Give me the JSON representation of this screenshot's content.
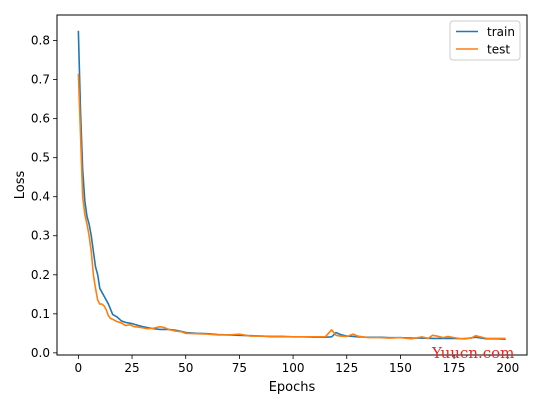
{
  "chart_data": {
    "type": "line",
    "xlabel": "Epochs",
    "ylabel": "Loss",
    "xlim": [
      -9.95,
      208.95
    ],
    "ylim": [
      -0.0055,
      0.8655
    ],
    "x_ticks": [
      0,
      25,
      50,
      75,
      100,
      125,
      150,
      175,
      200
    ],
    "y_ticks": [
      0.0,
      0.1,
      0.2,
      0.3,
      0.4,
      0.5,
      0.6,
      0.7,
      0.8
    ],
    "y_tick_labels": [
      "0.0",
      "0.1",
      "0.2",
      "0.3",
      "0.4",
      "0.5",
      "0.6",
      "0.7",
      "0.8"
    ],
    "grid": false,
    "legend_position": "top-right",
    "series": [
      {
        "name": "train",
        "color": "#1f77b4",
        "x": [
          0,
          1,
          2,
          3,
          4,
          5,
          6,
          7,
          8,
          9,
          10,
          12,
          14,
          16,
          18,
          20,
          22,
          25,
          28,
          30,
          32,
          35,
          38,
          40,
          42,
          45,
          48,
          50,
          55,
          60,
          65,
          70,
          75,
          80,
          85,
          90,
          95,
          100,
          105,
          110,
          115,
          118,
          120,
          122,
          125,
          128,
          130,
          135,
          140,
          145,
          150,
          155,
          160,
          165,
          170,
          175,
          180,
          185,
          190,
          195,
          199
        ],
        "values": [
          0.825,
          0.62,
          0.47,
          0.39,
          0.35,
          0.33,
          0.3,
          0.26,
          0.22,
          0.2,
          0.165,
          0.145,
          0.125,
          0.098,
          0.092,
          0.082,
          0.078,
          0.075,
          0.07,
          0.067,
          0.065,
          0.062,
          0.06,
          0.06,
          0.06,
          0.058,
          0.055,
          0.052,
          0.05,
          0.049,
          0.047,
          0.046,
          0.045,
          0.044,
          0.043,
          0.042,
          0.042,
          0.041,
          0.041,
          0.04,
          0.04,
          0.041,
          0.052,
          0.047,
          0.043,
          0.042,
          0.041,
          0.04,
          0.04,
          0.039,
          0.039,
          0.038,
          0.038,
          0.037,
          0.037,
          0.037,
          0.036,
          0.04,
          0.036,
          0.036,
          0.035
        ]
      },
      {
        "name": "test",
        "color": "#ff7f0e",
        "x": [
          0,
          1,
          2,
          3,
          4,
          5,
          6,
          7,
          8,
          9,
          10,
          11,
          12,
          13,
          14,
          15,
          16,
          18,
          20,
          22,
          24,
          26,
          28,
          30,
          32,
          35,
          38,
          40,
          42,
          45,
          48,
          50,
          55,
          60,
          65,
          70,
          75,
          80,
          85,
          90,
          95,
          100,
          105,
          110,
          115,
          118,
          120,
          122,
          125,
          128,
          130,
          135,
          140,
          145,
          150,
          155,
          160,
          163,
          165,
          167,
          170,
          172,
          175,
          178,
          180,
          183,
          185,
          190,
          195,
          199
        ],
        "values": [
          0.715,
          0.56,
          0.4,
          0.355,
          0.33,
          0.3,
          0.26,
          0.2,
          0.165,
          0.135,
          0.125,
          0.125,
          0.12,
          0.11,
          0.095,
          0.088,
          0.086,
          0.08,
          0.077,
          0.07,
          0.072,
          0.067,
          0.066,
          0.064,
          0.062,
          0.063,
          0.067,
          0.065,
          0.06,
          0.056,
          0.054,
          0.05,
          0.049,
          0.048,
          0.046,
          0.046,
          0.048,
          0.043,
          0.043,
          0.041,
          0.041,
          0.041,
          0.041,
          0.041,
          0.041,
          0.059,
          0.045,
          0.043,
          0.042,
          0.048,
          0.043,
          0.039,
          0.039,
          0.038,
          0.039,
          0.036,
          0.041,
          0.037,
          0.045,
          0.043,
          0.039,
          0.042,
          0.039,
          0.036,
          0.037,
          0.038,
          0.044,
          0.037,
          0.037,
          0.037
        ]
      }
    ]
  },
  "watermark": "Yuucn.com"
}
